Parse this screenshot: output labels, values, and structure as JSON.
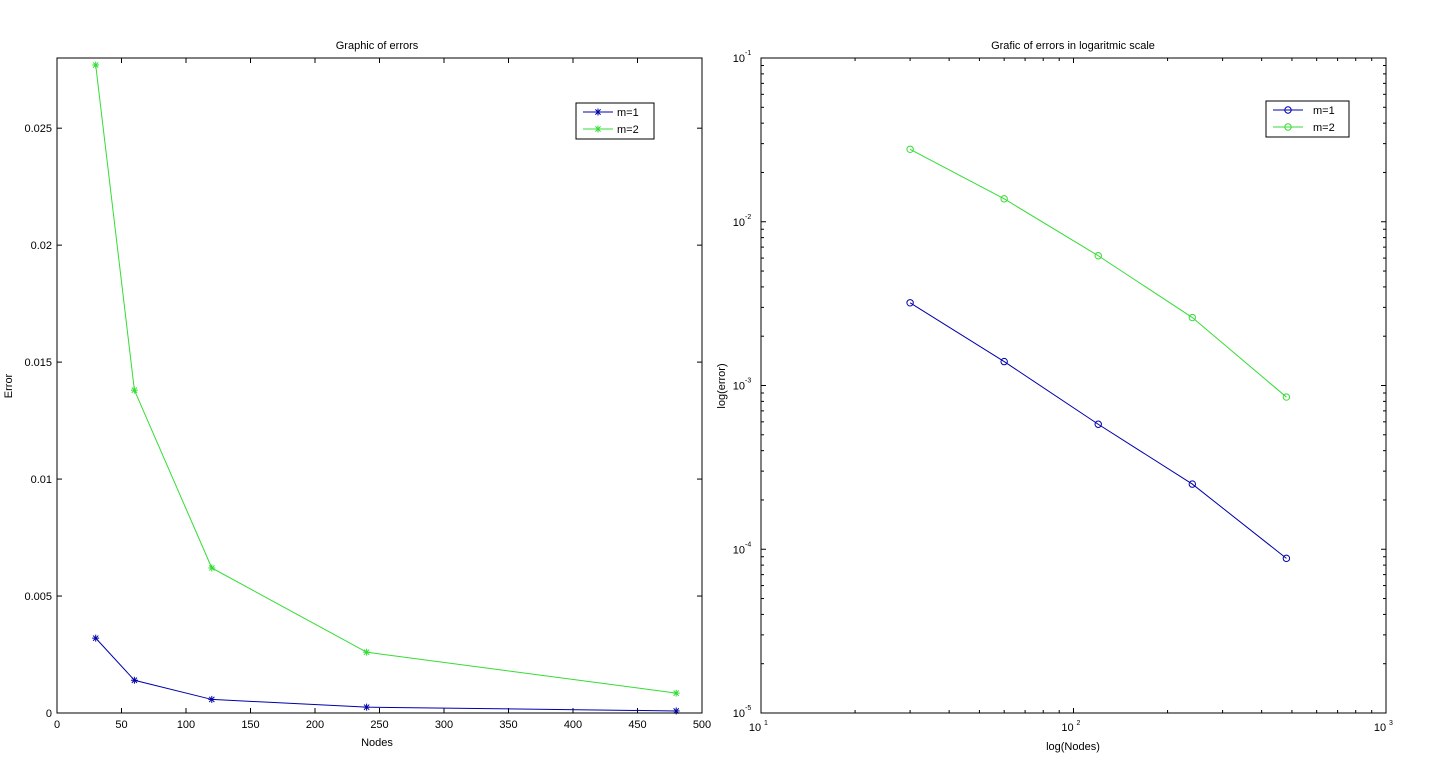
{
  "chart_data": [
    {
      "type": "line",
      "title": "Graphic of errors",
      "xlabel": "Nodes",
      "ylabel": "Error",
      "xlim": [
        0,
        500
      ],
      "ylim": [
        0,
        0.028
      ],
      "xticks": [
        0,
        50,
        100,
        150,
        200,
        250,
        300,
        350,
        400,
        450,
        500
      ],
      "xtick_labels": [
        "0",
        "50",
        "100",
        "150",
        "200",
        "250",
        "300",
        "350",
        "400",
        "450",
        "500"
      ],
      "yticks": [
        0,
        0.005,
        0.01,
        0.015,
        0.02,
        0.025
      ],
      "ytick_labels": [
        "0",
        "0.005",
        "0.01",
        "0.015",
        "0.02",
        "0.025"
      ],
      "grid": false,
      "legend_position": "top-right",
      "marker": "star",
      "x": [
        30,
        60,
        120,
        240,
        480
      ],
      "series": [
        {
          "name": "m=1",
          "color": "#0000aa",
          "values": [
            0.0032,
            0.0014,
            0.00058,
            0.00025,
            8.8e-05
          ]
        },
        {
          "name": "m=2",
          "color": "#33dd33",
          "values": [
            0.0277,
            0.0138,
            0.0062,
            0.0026,
            0.00085
          ]
        }
      ]
    },
    {
      "type": "line",
      "title": "Grafic of errors in logaritmic scale",
      "xlabel": "log(Nodes)",
      "ylabel": "log(error)",
      "xscale": "log",
      "yscale": "log",
      "xlim": [
        10,
        1000
      ],
      "ylim": [
        1e-05,
        0.1
      ],
      "xticks": [
        10,
        100,
        1000
      ],
      "xtick_labels": [
        [
          "10",
          "1"
        ],
        [
          "10",
          "2"
        ],
        [
          "10",
          "3"
        ]
      ],
      "yticks": [
        1e-05,
        0.0001,
        0.001,
        0.01,
        0.1
      ],
      "ytick_labels": [
        [
          "10",
          "-5"
        ],
        [
          "10",
          "-4"
        ],
        [
          "10",
          "-3"
        ],
        [
          "10",
          "-2"
        ],
        [
          "10",
          "-1"
        ]
      ],
      "grid": false,
      "legend_position": "top-right",
      "marker": "circle",
      "x": [
        30,
        60,
        120,
        240,
        480
      ],
      "series": [
        {
          "name": "m=1",
          "color": "#0000aa",
          "values": [
            0.0032,
            0.0014,
            0.00058,
            0.00025,
            8.8e-05
          ]
        },
        {
          "name": "m=2",
          "color": "#33dd33",
          "values": [
            0.0277,
            0.0138,
            0.0062,
            0.0026,
            0.00085
          ]
        }
      ]
    }
  ]
}
